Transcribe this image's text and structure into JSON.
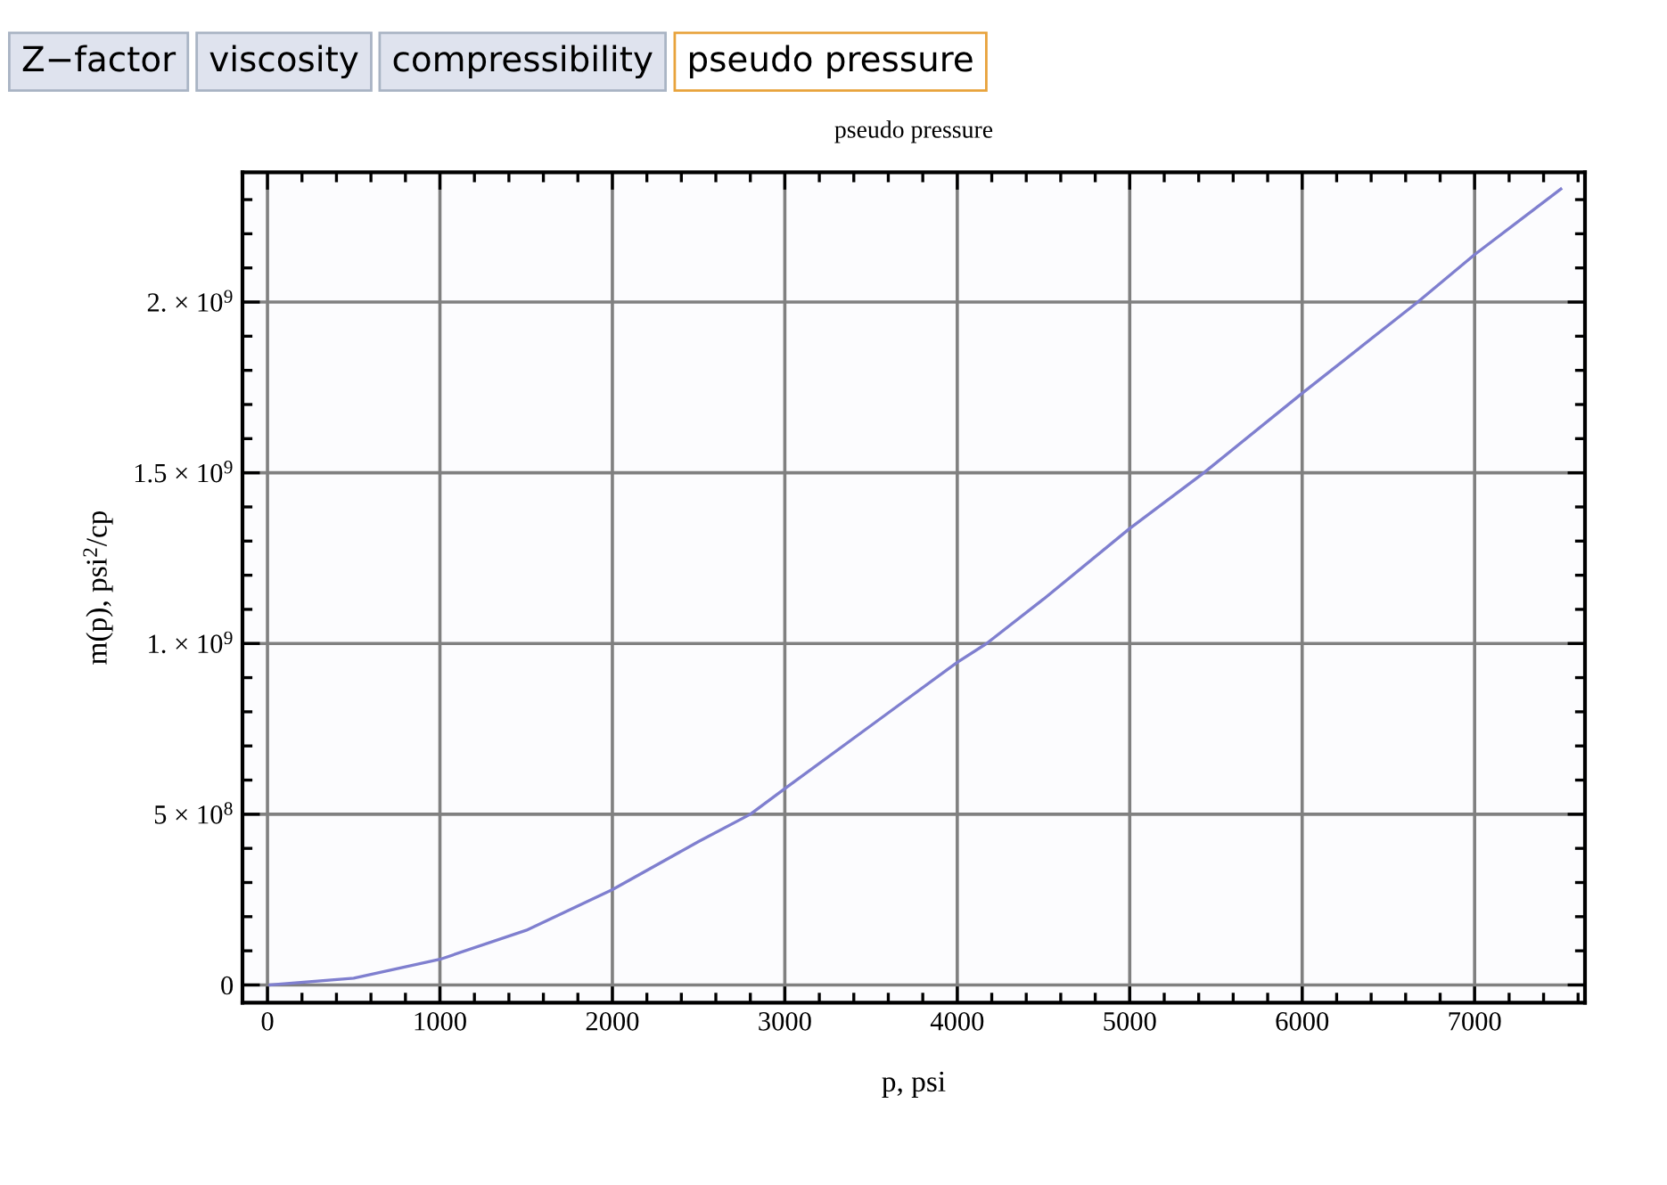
{
  "chart_data": {
    "type": "line",
    "title": "pseudo pressure",
    "xlabel": "p, psi",
    "ylabel": "m(p), psi$^{2}$/cp",
    "annotations": [
      "Z−factor",
      "viscosity",
      "compressibility",
      "pseudo pressure"
    ],
    "x": [
      15,
      500,
      1000,
      1500,
      2000,
      2500,
      2800,
      3000,
      3500,
      4000,
      4170,
      4500,
      5000,
      5430,
      6000,
      6670,
      7000,
      7500
    ],
    "series": [
      {
        "color": "#7f7fcf",
        "values": [
          0,
          20000000.0,
          75000000.0,
          160000000.0,
          279000000.0,
          420000000.0,
          500000000.0,
          575000000.0,
          760000000.0,
          945000000.0,
          1000000000.0,
          1130000000.0,
          1337000000.0,
          1500000000.0,
          1733000000.0,
          2000000000.0,
          2139000000.0,
          2331000000.0
        ]
      }
    ],
    "xlim": [
      -145,
      7640
    ],
    "ylim": [
      -52000000.0,
      2380000000.0
    ],
    "xticks": [
      0,
      1000,
      2000,
      3000,
      4000,
      5000,
      6000,
      7000
    ],
    "yticks": [
      0,
      {
        "value": 500000000.0,
        "label": "5 × 10$^{8}$"
      },
      {
        "value": 1000000000.0,
        "label": "1. × 10$^{9}$"
      },
      {
        "value": 1500000000.0,
        "label": "1.5 × 10$^{9}$"
      },
      {
        "value": 2000000000.0,
        "label": "2. × 10$^{9}$"
      }
    ],
    "grid": true,
    "marker": "none",
    "line_style": "solid",
    "legend": false
  }
}
